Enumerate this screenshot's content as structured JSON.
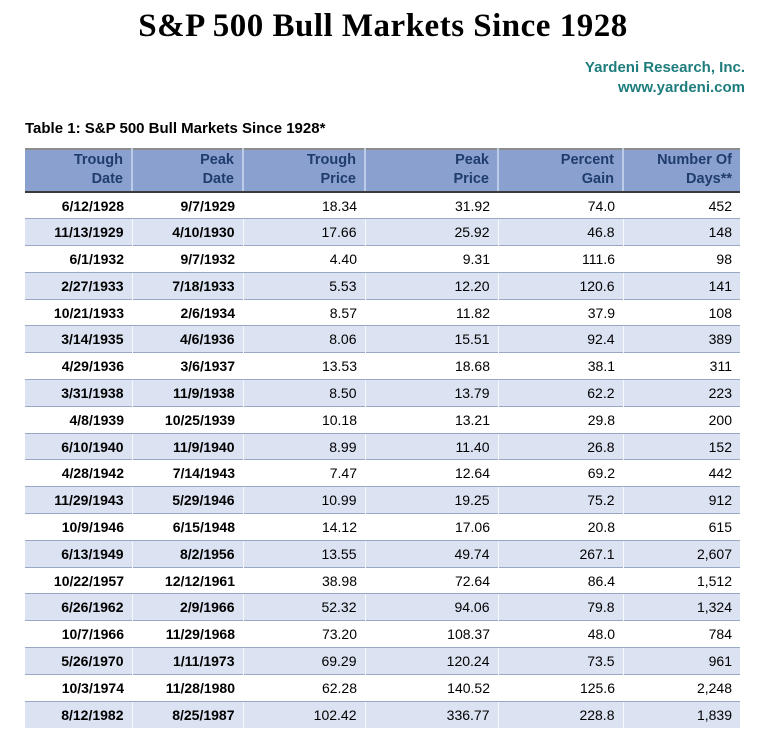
{
  "header": {
    "title": "S&P 500 Bull Markets Since 1928",
    "source_name": "Yardeni Research, Inc.",
    "source_url": "www.yardeni.com"
  },
  "caption": "Table 1: S&P 500 Bull Markets Since 1928*",
  "colors": {
    "header_bg": "#8AA0CF",
    "header_text": "#1F3C6D",
    "row_alt_bg": "#DBE2F1",
    "row_border": "#98A8C5",
    "source_teal": "#1E7C7D"
  },
  "chart_data": {
    "type": "table",
    "title": "S&P 500 Bull Markets Since 1928",
    "caption": "Table 1: S&P 500 Bull Markets Since 1928*",
    "columns": [
      "Trough Date",
      "Peak Date",
      "Trough Price",
      "Peak Price",
      "Percent Gain",
      "Number Of Days**"
    ],
    "header_lines": [
      [
        "Trough",
        "Date"
      ],
      [
        "Peak",
        "Date"
      ],
      [
        "Trough",
        "Price"
      ],
      [
        "Peak",
        "Price"
      ],
      [
        "Percent",
        "Gain"
      ],
      [
        "Number Of",
        "Days**"
      ]
    ],
    "rows": [
      [
        "6/12/1928",
        "9/7/1929",
        "18.34",
        "31.92",
        "74.0",
        "452"
      ],
      [
        "11/13/1929",
        "4/10/1930",
        "17.66",
        "25.92",
        "46.8",
        "148"
      ],
      [
        "6/1/1932",
        "9/7/1932",
        "4.40",
        "9.31",
        "111.6",
        "98"
      ],
      [
        "2/27/1933",
        "7/18/1933",
        "5.53",
        "12.20",
        "120.6",
        "141"
      ],
      [
        "10/21/1933",
        "2/6/1934",
        "8.57",
        "11.82",
        "37.9",
        "108"
      ],
      [
        "3/14/1935",
        "4/6/1936",
        "8.06",
        "15.51",
        "92.4",
        "389"
      ],
      [
        "4/29/1936",
        "3/6/1937",
        "13.53",
        "18.68",
        "38.1",
        "311"
      ],
      [
        "3/31/1938",
        "11/9/1938",
        "8.50",
        "13.79",
        "62.2",
        "223"
      ],
      [
        "4/8/1939",
        "10/25/1939",
        "10.18",
        "13.21",
        "29.8",
        "200"
      ],
      [
        "6/10/1940",
        "11/9/1940",
        "8.99",
        "11.40",
        "26.8",
        "152"
      ],
      [
        "4/28/1942",
        "7/14/1943",
        "7.47",
        "12.64",
        "69.2",
        "442"
      ],
      [
        "11/29/1943",
        "5/29/1946",
        "10.99",
        "19.25",
        "75.2",
        "912"
      ],
      [
        "10/9/1946",
        "6/15/1948",
        "14.12",
        "17.06",
        "20.8",
        "615"
      ],
      [
        "6/13/1949",
        "8/2/1956",
        "13.55",
        "49.74",
        "267.1",
        "2,607"
      ],
      [
        "10/22/1957",
        "12/12/1961",
        "38.98",
        "72.64",
        "86.4",
        "1,512"
      ],
      [
        "6/26/1962",
        "2/9/1966",
        "52.32",
        "94.06",
        "79.8",
        "1,324"
      ],
      [
        "10/7/1966",
        "11/29/1968",
        "73.20",
        "108.37",
        "48.0",
        "784"
      ],
      [
        "5/26/1970",
        "1/11/1973",
        "69.29",
        "120.24",
        "73.5",
        "961"
      ],
      [
        "10/3/1974",
        "11/28/1980",
        "62.28",
        "140.52",
        "125.6",
        "2,248"
      ],
      [
        "8/12/1982",
        "8/25/1987",
        "102.42",
        "336.77",
        "228.8",
        "1,839"
      ]
    ]
  }
}
